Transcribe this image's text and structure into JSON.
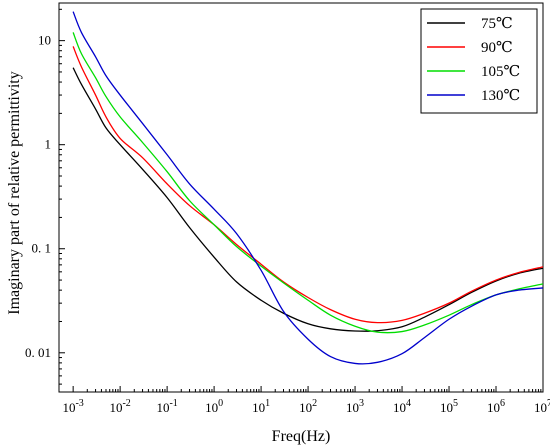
{
  "chart_data": {
    "type": "line",
    "title": "",
    "xlabel": "Freq(Hz)",
    "ylabel": "Imaginary part of relative permittivity",
    "x_scale": "log",
    "y_scale": "log",
    "xlim": [
      0.0005,
      10000000
    ],
    "ylim": [
      0.0042,
      23
    ],
    "x_ticks": [
      {
        "value": 0.001,
        "base": "10",
        "exp": "-3"
      },
      {
        "value": 0.01,
        "base": "10",
        "exp": "-2"
      },
      {
        "value": 0.1,
        "base": "10",
        "exp": "-1"
      },
      {
        "value": 1,
        "base": "10",
        "exp": "0"
      },
      {
        "value": 10,
        "base": "10",
        "exp": "1"
      },
      {
        "value": 100,
        "base": "10",
        "exp": "2"
      },
      {
        "value": 1000,
        "base": "10",
        "exp": "3"
      },
      {
        "value": 10000,
        "base": "10",
        "exp": "4"
      },
      {
        "value": 100000,
        "base": "10",
        "exp": "5"
      },
      {
        "value": 1000000,
        "base": "10",
        "exp": "6"
      },
      {
        "value": 10000000,
        "base": "10",
        "exp": "7"
      }
    ],
    "y_ticks": [
      {
        "value": 10,
        "label": "10"
      },
      {
        "value": 1,
        "label": "1"
      },
      {
        "value": 0.1,
        "label": "0. 1"
      },
      {
        "value": 0.01,
        "label": "0. 01"
      }
    ],
    "legend_position": "top-right",
    "grid": false,
    "series": [
      {
        "name": "75℃",
        "color": "#000000",
        "points": [
          [
            0.001,
            5.5
          ],
          [
            0.0015,
            3.8
          ],
          [
            0.003,
            2.2
          ],
          [
            0.005,
            1.45
          ],
          [
            0.01,
            1.0
          ],
          [
            0.03,
            0.58
          ],
          [
            0.1,
            0.31
          ],
          [
            0.3,
            0.16
          ],
          [
            1,
            0.083
          ],
          [
            3,
            0.048
          ],
          [
            10,
            0.032
          ],
          [
            30,
            0.024
          ],
          [
            100,
            0.019
          ],
          [
            300,
            0.017
          ],
          [
            1000,
            0.0162
          ],
          [
            3000,
            0.0163
          ],
          [
            10000,
            0.0178
          ],
          [
            30000,
            0.022
          ],
          [
            100000,
            0.029
          ],
          [
            300000,
            0.038
          ],
          [
            1000000,
            0.049
          ],
          [
            3000000,
            0.058
          ],
          [
            10000000,
            0.065
          ]
        ]
      },
      {
        "name": "90℃",
        "color": "#ff0000",
        "points": [
          [
            0.001,
            8.8
          ],
          [
            0.0015,
            5.6
          ],
          [
            0.003,
            3.0
          ],
          [
            0.005,
            1.85
          ],
          [
            0.01,
            1.15
          ],
          [
            0.03,
            0.75
          ],
          [
            0.1,
            0.42
          ],
          [
            0.3,
            0.26
          ],
          [
            1,
            0.17
          ],
          [
            3,
            0.11
          ],
          [
            10,
            0.071
          ],
          [
            30,
            0.048
          ],
          [
            100,
            0.034
          ],
          [
            300,
            0.026
          ],
          [
            1000,
            0.021
          ],
          [
            3000,
            0.0195
          ],
          [
            10000,
            0.0205
          ],
          [
            30000,
            0.024
          ],
          [
            100000,
            0.03
          ],
          [
            300000,
            0.039
          ],
          [
            1000000,
            0.05
          ],
          [
            3000000,
            0.059
          ],
          [
            10000000,
            0.067
          ]
        ]
      },
      {
        "name": "105℃",
        "color": "#00dd00",
        "points": [
          [
            0.001,
            12
          ],
          [
            0.0015,
            7.5
          ],
          [
            0.003,
            4.4
          ],
          [
            0.005,
            2.9
          ],
          [
            0.01,
            1.85
          ],
          [
            0.03,
            1.05
          ],
          [
            0.1,
            0.55
          ],
          [
            0.3,
            0.29
          ],
          [
            1,
            0.17
          ],
          [
            3,
            0.105
          ],
          [
            10,
            0.068
          ],
          [
            30,
            0.047
          ],
          [
            100,
            0.032
          ],
          [
            300,
            0.023
          ],
          [
            1000,
            0.018
          ],
          [
            3000,
            0.0158
          ],
          [
            10000,
            0.016
          ],
          [
            30000,
            0.0185
          ],
          [
            100000,
            0.023
          ],
          [
            300000,
            0.029
          ],
          [
            1000000,
            0.036
          ],
          [
            3000000,
            0.041
          ],
          [
            10000000,
            0.046
          ]
        ]
      },
      {
        "name": "130℃",
        "color": "#0000cc",
        "points": [
          [
            0.001,
            19
          ],
          [
            0.0015,
            12
          ],
          [
            0.003,
            7.0
          ],
          [
            0.005,
            4.6
          ],
          [
            0.01,
            3.0
          ],
          [
            0.03,
            1.6
          ],
          [
            0.1,
            0.8
          ],
          [
            0.3,
            0.42
          ],
          [
            1,
            0.24
          ],
          [
            3,
            0.14
          ],
          [
            10,
            0.062
          ],
          [
            30,
            0.025
          ],
          [
            100,
            0.0135
          ],
          [
            300,
            0.0092
          ],
          [
            1000,
            0.0079
          ],
          [
            3000,
            0.0081
          ],
          [
            10000,
            0.0098
          ],
          [
            30000,
            0.014
          ],
          [
            100000,
            0.021
          ],
          [
            300000,
            0.028
          ],
          [
            1000000,
            0.036
          ],
          [
            3000000,
            0.04
          ],
          [
            10000000,
            0.042
          ]
        ]
      }
    ]
  }
}
